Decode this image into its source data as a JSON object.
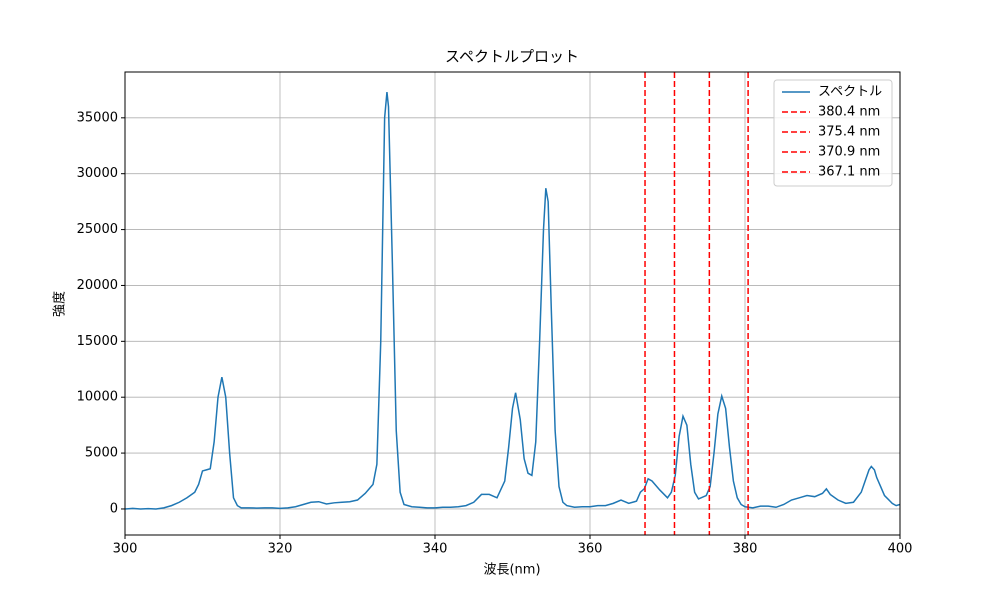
{
  "chart_data": {
    "type": "line",
    "title": "スペクトルプロット",
    "x_label": "波長(nm)",
    "y_label": "強度",
    "xlim": [
      300,
      400
    ],
    "ylim": [
      -2330,
      39100
    ],
    "xticks": [
      300,
      320,
      340,
      360,
      380,
      400
    ],
    "yticks": [
      0,
      5000,
      10000,
      15000,
      20000,
      25000,
      30000,
      35000
    ],
    "grid": true,
    "legend": "upper right",
    "series": [
      {
        "name": "スペクトル",
        "color": "#1f77b4",
        "x": [
          300,
          301,
          302,
          303,
          304,
          305,
          306,
          307,
          308,
          309,
          309.5,
          310,
          310.5,
          311,
          311.5,
          312,
          312.5,
          313,
          313.5,
          314,
          314.5,
          315,
          316,
          317,
          318,
          319,
          320,
          321,
          322,
          323,
          324,
          325,
          326,
          327,
          328,
          329,
          330,
          331,
          332,
          332.5,
          333,
          333.5,
          333.8,
          334,
          334.5,
          335,
          335.5,
          336,
          337,
          338,
          339,
          340,
          341,
          342,
          343,
          344,
          345,
          346,
          347,
          348,
          349,
          349.5,
          350,
          350.4,
          351,
          351.5,
          352,
          352.5,
          353,
          353.5,
          354,
          354.3,
          354.6,
          355,
          355.5,
          356,
          356.5,
          357,
          358,
          359,
          360,
          361,
          362,
          363,
          364,
          365,
          366,
          366.5,
          367,
          367.5,
          368,
          369,
          370,
          370.5,
          371,
          371.5,
          372,
          372.5,
          373,
          373.5,
          374,
          375,
          375.5,
          376,
          376.5,
          377,
          377.5,
          378,
          378.5,
          379,
          379.5,
          380,
          381,
          382,
          383,
          384,
          385,
          386,
          387,
          388,
          389,
          390,
          390.5,
          391,
          392,
          393,
          394,
          395,
          395.5,
          396,
          396.3,
          396.7,
          397,
          397.5,
          398,
          399,
          399.5,
          400
        ],
        "values": [
          0,
          50,
          0,
          30,
          0,
          100,
          300,
          600,
          1000,
          1500,
          2200,
          3400,
          3500,
          3600,
          6000,
          10000,
          11800,
          10000,
          5000,
          1000,
          300,
          100,
          100,
          80,
          100,
          100,
          50,
          100,
          200,
          400,
          600,
          650,
          450,
          550,
          600,
          650,
          800,
          1400,
          2200,
          4000,
          15000,
          35000,
          37300,
          36000,
          22000,
          7000,
          1500,
          400,
          200,
          150,
          100,
          100,
          150,
          150,
          200,
          300,
          600,
          1300,
          1300,
          1000,
          2500,
          5500,
          9000,
          10400,
          8000,
          4500,
          3200,
          3000,
          6000,
          15000,
          25000,
          28700,
          27500,
          18000,
          7000,
          2000,
          600,
          300,
          150,
          200,
          200,
          300,
          300,
          500,
          800,
          500,
          700,
          1500,
          1800,
          2700,
          2500,
          1700,
          1000,
          1500,
          3000,
          6500,
          8300,
          7500,
          4000,
          1500,
          900,
          1200,
          2000,
          5000,
          8500,
          10100,
          9000,
          5500,
          2500,
          1000,
          400,
          200,
          100,
          250,
          250,
          150,
          400,
          800,
          1000,
          1200,
          1100,
          1400,
          1800,
          1300,
          800,
          500,
          600,
          1500,
          2500,
          3500,
          3800,
          3500,
          2800,
          2000,
          1200,
          500,
          300,
          400
        ]
      }
    ],
    "vlines": [
      {
        "value": 380.4,
        "label": "380.4 nm"
      },
      {
        "value": 375.4,
        "label": "375.4 nm"
      },
      {
        "value": 370.9,
        "label": "370.9 nm"
      },
      {
        "value": 367.1,
        "label": "367.1 nm"
      }
    ],
    "vline_color": "#ff0000"
  }
}
